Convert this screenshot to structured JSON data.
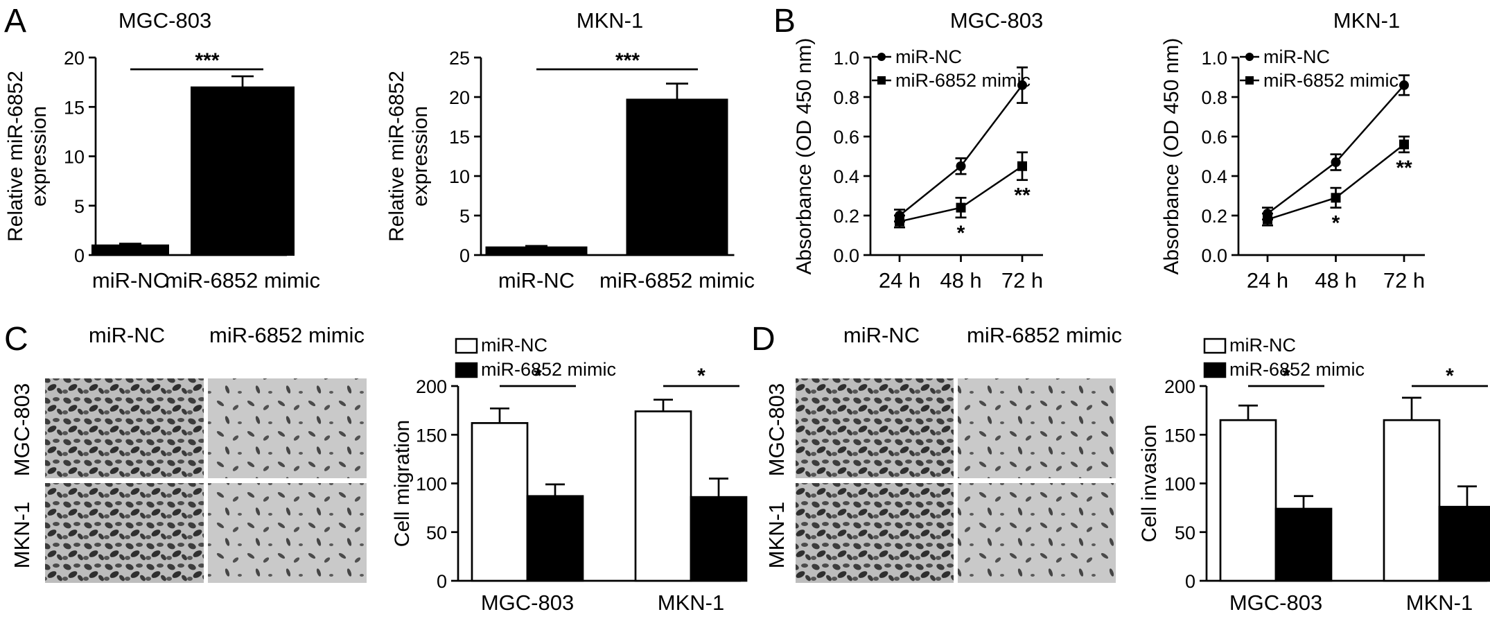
{
  "panel_letters": {
    "a": "A",
    "b": "B",
    "c": "C",
    "d": "D"
  },
  "image_labels": {
    "c": {
      "cols": [
        "miR-NC",
        "miR-6852 mimic"
      ],
      "rows": [
        "MGC-803",
        "MKN-1"
      ]
    },
    "d": {
      "cols": [
        "miR-NC",
        "miR-6852 mimic"
      ],
      "rows": [
        "MGC-803",
        "MKN-1"
      ]
    }
  },
  "colors": {
    "filled": "#000000",
    "open": "#ffffff",
    "line": "#000000"
  },
  "chart_data": [
    {
      "id": "a1",
      "type": "bar",
      "title": "MGC-803",
      "ylabel": "Relative miR-6852 expression",
      "categories": [
        "miR-NC",
        "miR-6852 mimic"
      ],
      "values": [
        1.0,
        17.0
      ],
      "errors": [
        0.15,
        1.1
      ],
      "ylim": [
        0,
        20
      ],
      "yticks": [
        0,
        5,
        10,
        15,
        20
      ],
      "significance": "***",
      "bar_fill": [
        "#000000",
        "#000000"
      ]
    },
    {
      "id": "a2",
      "type": "bar",
      "title": "MKN-1",
      "ylabel": "Relative miR-6852 expression",
      "categories": [
        "miR-NC",
        "miR-6852 mimic"
      ],
      "values": [
        1.0,
        19.7
      ],
      "errors": [
        0.15,
        2.0
      ],
      "ylim": [
        0,
        25
      ],
      "yticks": [
        0,
        5,
        10,
        15,
        20,
        25
      ],
      "significance": "***",
      "bar_fill": [
        "#000000",
        "#000000"
      ]
    },
    {
      "id": "b1",
      "type": "line",
      "title": "MGC-803",
      "ylabel": "Absorbance (OD 450 nm)",
      "x": [
        "24 h",
        "48 h",
        "72 h"
      ],
      "ylim": [
        0,
        1.0
      ],
      "yticks": [
        "0.0",
        "0.2",
        "0.4",
        "0.6",
        "0.8",
        "1.0"
      ],
      "series": [
        {
          "name": "miR-NC",
          "marker": "circle",
          "values": [
            0.2,
            0.45,
            0.86
          ],
          "errors": [
            0.03,
            0.04,
            0.09
          ]
        },
        {
          "name": "miR-6852 mimic",
          "marker": "square",
          "values": [
            0.17,
            0.24,
            0.45
          ],
          "errors": [
            0.03,
            0.05,
            0.07
          ]
        }
      ],
      "significance": [
        "",
        "*",
        "**"
      ],
      "legend": "top-left"
    },
    {
      "id": "b2",
      "type": "line",
      "title": "MKN-1",
      "ylabel": "Absorbance (OD 450 nm)",
      "x": [
        "24 h",
        "48 h",
        "72 h"
      ],
      "ylim": [
        0,
        1.0
      ],
      "yticks": [
        "0.0",
        "0.2",
        "0.4",
        "0.6",
        "0.8",
        "1.0"
      ],
      "series": [
        {
          "name": "miR-NC",
          "marker": "circle",
          "values": [
            0.21,
            0.47,
            0.86
          ],
          "errors": [
            0.03,
            0.04,
            0.05
          ]
        },
        {
          "name": "miR-6852 mimic",
          "marker": "square",
          "values": [
            0.18,
            0.29,
            0.56
          ],
          "errors": [
            0.03,
            0.05,
            0.04
          ]
        }
      ],
      "significance": [
        "",
        "*",
        "**"
      ],
      "legend": "top-left"
    },
    {
      "id": "c",
      "type": "bar",
      "title": "",
      "ylabel": "Cell migration",
      "categories": [
        "MGC-803",
        "MKN-1"
      ],
      "series": [
        {
          "name": "miR-NC",
          "values": [
            162,
            174
          ],
          "errors": [
            15,
            12
          ],
          "fill": "#ffffff"
        },
        {
          "name": "miR-6852 mimic",
          "values": [
            87,
            86
          ],
          "errors": [
            12,
            19
          ],
          "fill": "#000000"
        }
      ],
      "ylim": [
        0,
        200
      ],
      "yticks": [
        0,
        50,
        100,
        150,
        200
      ],
      "significance": [
        "*",
        "*"
      ],
      "legend": "top-left"
    },
    {
      "id": "d",
      "type": "bar",
      "title": "",
      "ylabel": "Cell invasion",
      "categories": [
        "MGC-803",
        "MKN-1"
      ],
      "series": [
        {
          "name": "miR-NC",
          "values": [
            165,
            165
          ],
          "errors": [
            15,
            23
          ],
          "fill": "#ffffff"
        },
        {
          "name": "miR-6852 mimic",
          "values": [
            74,
            76
          ],
          "errors": [
            13,
            21
          ],
          "fill": "#000000"
        }
      ],
      "ylim": [
        0,
        200
      ],
      "yticks": [
        0,
        50,
        100,
        150,
        200
      ],
      "significance": [
        "*",
        "*"
      ],
      "legend": "top-left"
    }
  ]
}
